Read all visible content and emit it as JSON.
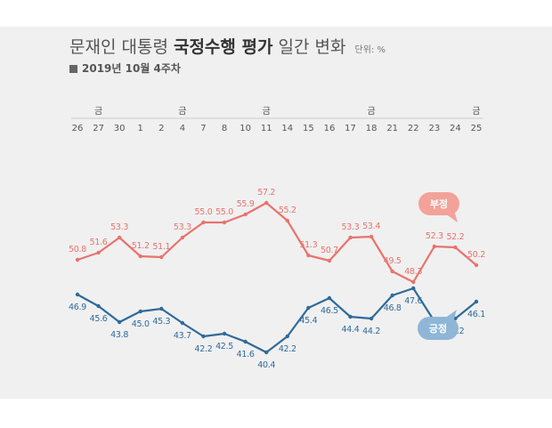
{
  "header": {
    "title_prefix": "문재인 대통령",
    "title_bold": "국정수행 평가",
    "title_suffix": "일간 변화",
    "unit": "단위: %",
    "subtitle": "2019년 10월 4주차"
  },
  "chart_data": {
    "type": "line",
    "x": [
      "26",
      "27",
      "30",
      "1",
      "2",
      "4",
      "7",
      "8",
      "10",
      "11",
      "14",
      "15",
      "16",
      "17",
      "18",
      "21",
      "22",
      "23",
      "24",
      "25"
    ],
    "friday_marker": "금",
    "friday_indices": [
      1,
      5,
      9,
      14,
      19
    ],
    "series": [
      {
        "name": "부정",
        "color": "#e8736c",
        "values": [
          50.8,
          51.6,
          53.3,
          51.2,
          51.1,
          53.3,
          55.0,
          55.0,
          55.9,
          57.2,
          55.2,
          51.3,
          50.7,
          53.3,
          53.4,
          49.5,
          48.3,
          52.3,
          52.2,
          50.2
        ]
      },
      {
        "name": "긍정",
        "color": "#2f6a9a",
        "values": [
          46.9,
          45.6,
          43.8,
          45.0,
          45.3,
          43.7,
          42.2,
          42.5,
          41.6,
          40.4,
          42.2,
          45.4,
          46.5,
          44.4,
          44.2,
          46.8,
          47.6,
          43.9,
          44.2,
          46.1
        ]
      }
    ],
    "bubbles": {
      "negative": {
        "label": "부정",
        "color": "#f2a299"
      },
      "positive": {
        "label": "긍정",
        "color": "#8fb6d7"
      }
    },
    "ylim": [
      36,
      62
    ],
    "grid": false
  }
}
